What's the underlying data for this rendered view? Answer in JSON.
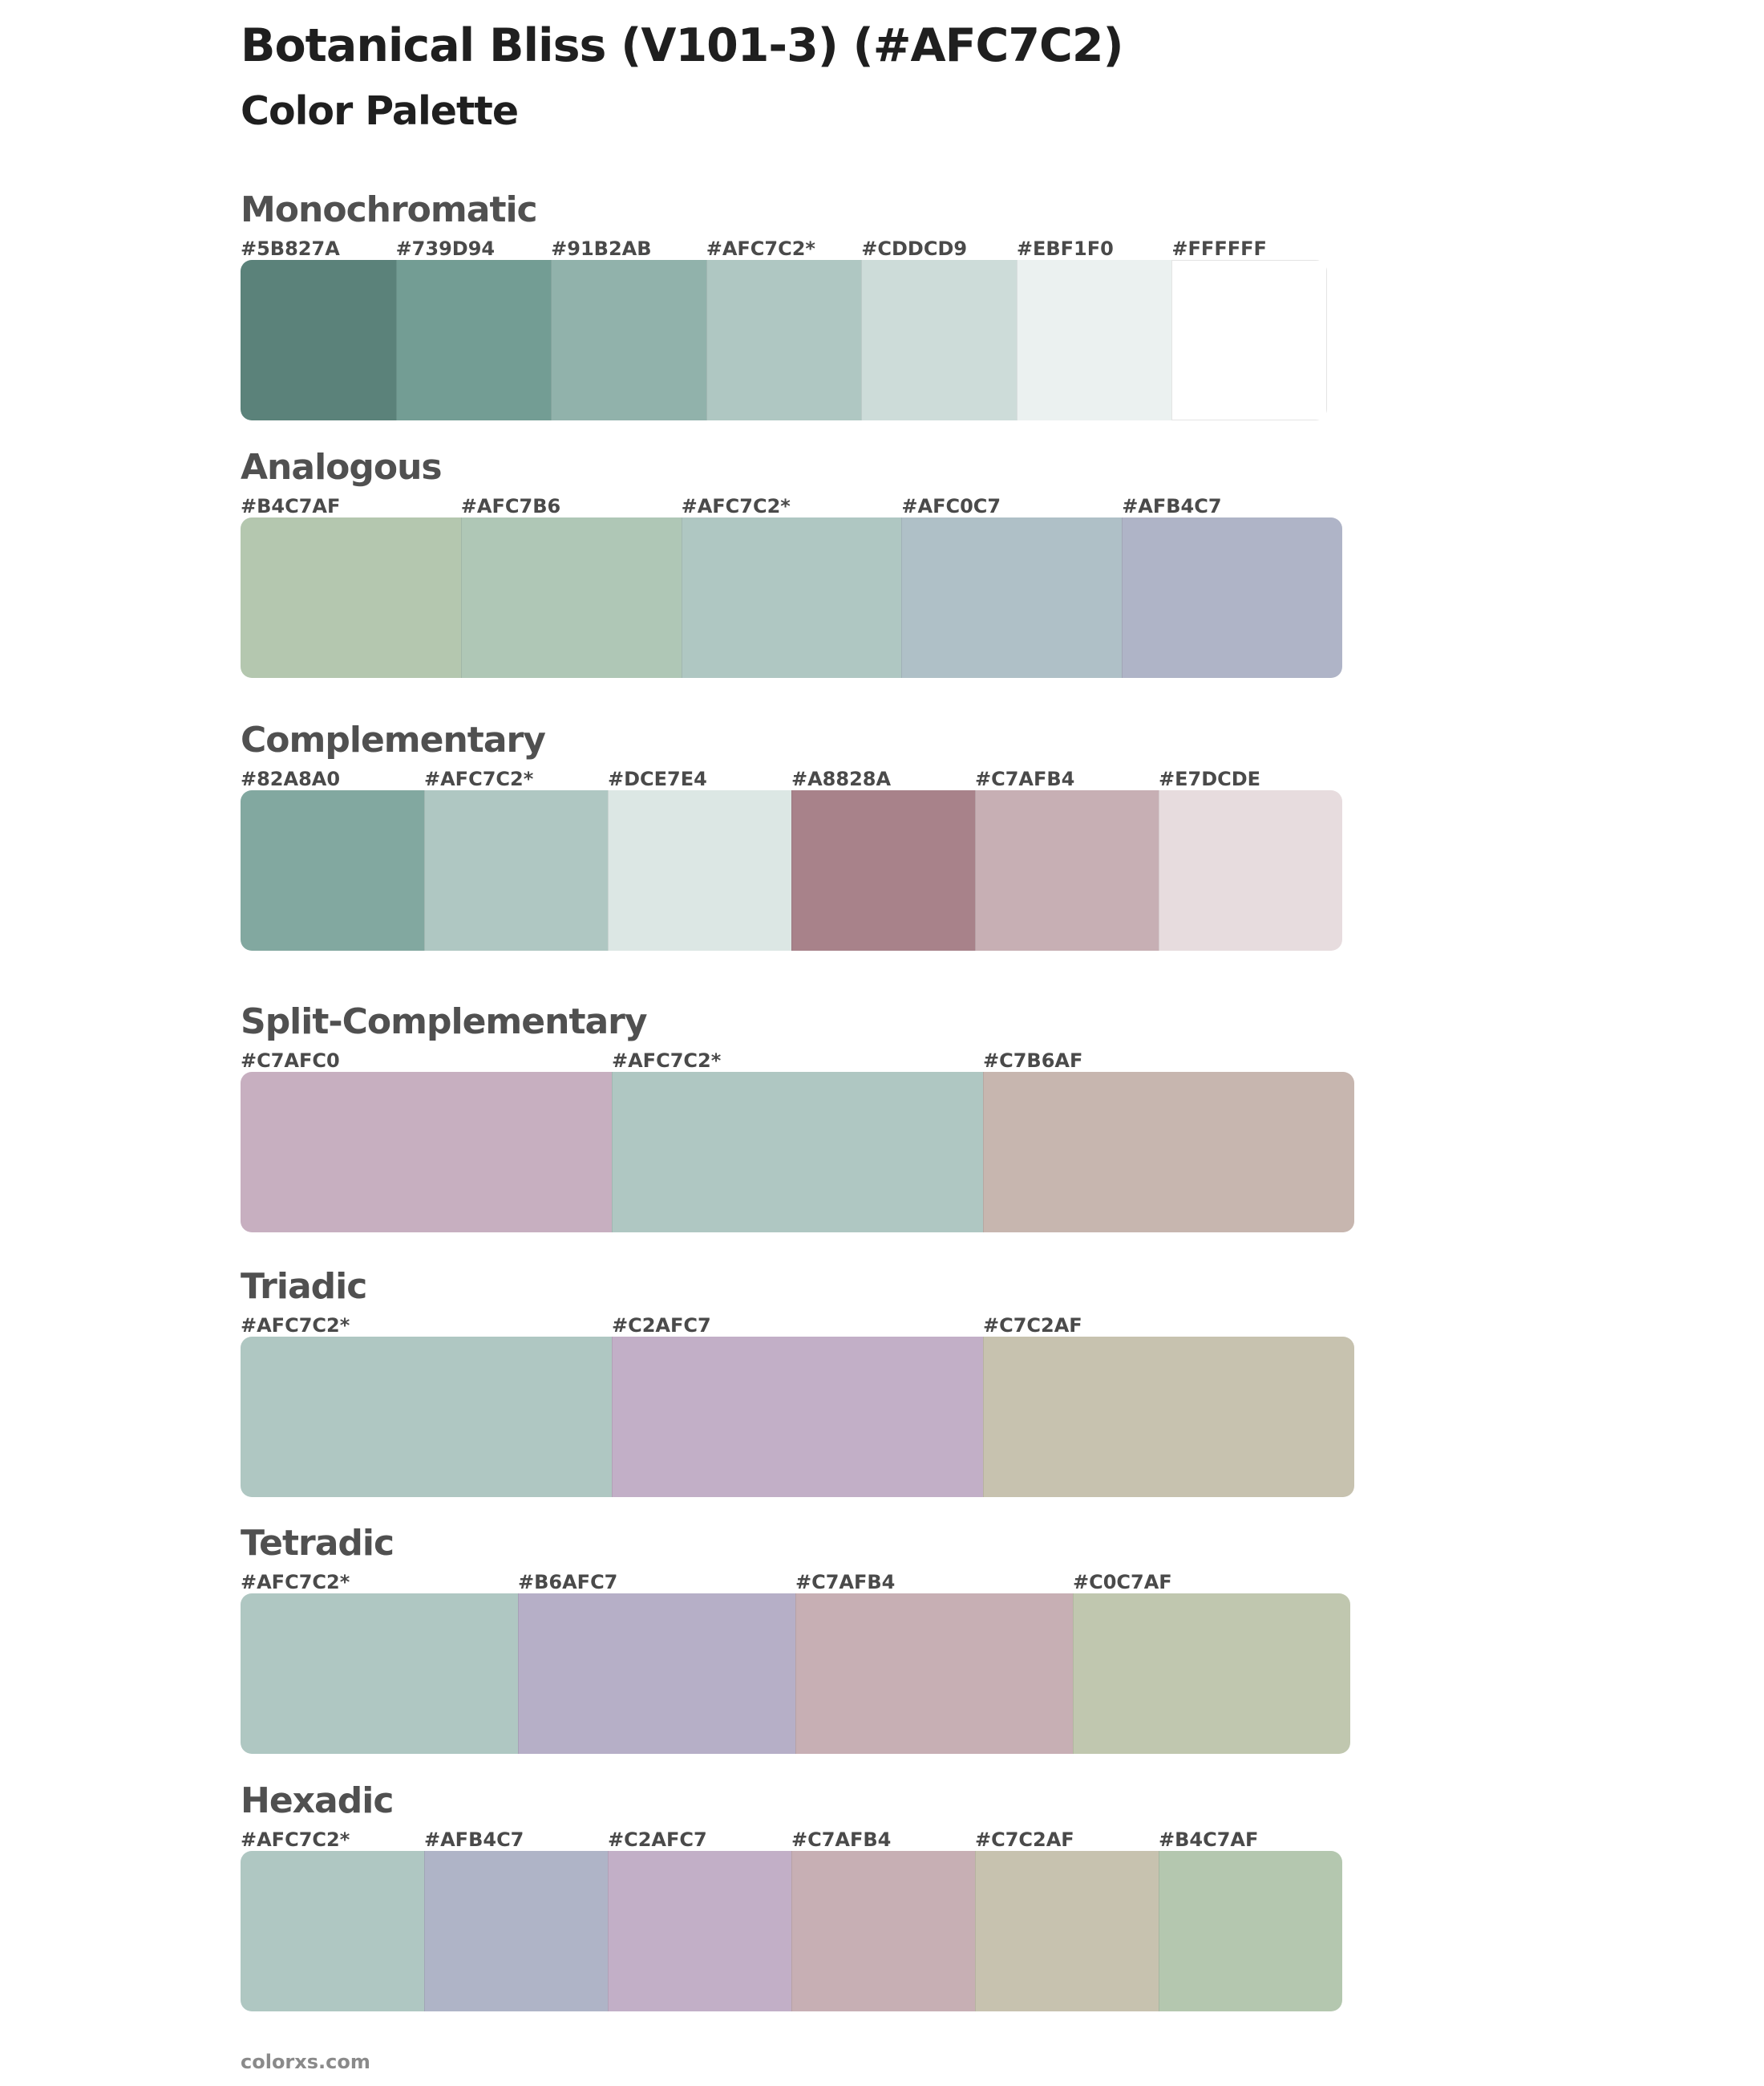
{
  "page": {
    "title": "Botanical Bliss (V101-3) (#AFC7C2)",
    "subtitle": "Color Palette",
    "footer": "colorxs.com"
  },
  "sections": [
    {
      "name": "Monochromatic",
      "swatches": [
        {
          "label": "#5B827A",
          "color": "#5B827A"
        },
        {
          "label": "#739D94",
          "color": "#739D94"
        },
        {
          "label": "#91B2AB",
          "color": "#91B2AB"
        },
        {
          "label": "#AFC7C2*",
          "color": "#AFC7C2"
        },
        {
          "label": "#CDDCD9",
          "color": "#CDDCD9"
        },
        {
          "label": "#EBF1F0",
          "color": "#EBF1F0"
        },
        {
          "label": "#FFFFFF",
          "color": "#FFFFFF"
        }
      ]
    },
    {
      "name": "Analogous",
      "swatches": [
        {
          "label": "#B4C7AF",
          "color": "#B4C7AF"
        },
        {
          "label": "#AFC7B6",
          "color": "#AFC7B6"
        },
        {
          "label": "#AFC7C2*",
          "color": "#AFC7C2"
        },
        {
          "label": "#AFC0C7",
          "color": "#AFC0C7"
        },
        {
          "label": "#AFB4C7",
          "color": "#AFB4C7"
        }
      ]
    },
    {
      "name": "Complementary",
      "swatches": [
        {
          "label": "#82A8A0",
          "color": "#82A8A0"
        },
        {
          "label": "#AFC7C2*",
          "color": "#AFC7C2"
        },
        {
          "label": "#DCE7E4",
          "color": "#DCE7E4"
        },
        {
          "label": "#A8828A",
          "color": "#A8828A"
        },
        {
          "label": "#C7AFB4",
          "color": "#C7AFB4"
        },
        {
          "label": "#E7DCDE",
          "color": "#E7DCDE"
        }
      ]
    },
    {
      "name": "Split-Complementary",
      "swatches": [
        {
          "label": "#C7AFC0",
          "color": "#C7AFC0"
        },
        {
          "label": "#AFC7C2*",
          "color": "#AFC7C2"
        },
        {
          "label": "#C7B6AF",
          "color": "#C7B6AF"
        }
      ]
    },
    {
      "name": "Triadic",
      "swatches": [
        {
          "label": "#AFC7C2*",
          "color": "#AFC7C2"
        },
        {
          "label": "#C2AFC7",
          "color": "#C2AFC7"
        },
        {
          "label": "#C7C2AF",
          "color": "#C7C2AF"
        }
      ]
    },
    {
      "name": "Tetradic",
      "swatches": [
        {
          "label": "#AFC7C2*",
          "color": "#AFC7C2"
        },
        {
          "label": "#B6AFC7",
          "color": "#B6AFC7"
        },
        {
          "label": "#C7AFB4",
          "color": "#C7AFB4"
        },
        {
          "label": "#C0C7AF",
          "color": "#C0C7AF"
        }
      ]
    },
    {
      "name": "Hexadic",
      "swatches": [
        {
          "label": "#AFC7C2*",
          "color": "#AFC7C2"
        },
        {
          "label": "#AFB4C7",
          "color": "#AFB4C7"
        },
        {
          "label": "#C2AFC7",
          "color": "#C2AFC7"
        },
        {
          "label": "#C7AFB4",
          "color": "#C7AFB4"
        },
        {
          "label": "#C7C2AF",
          "color": "#C7C2AF"
        },
        {
          "label": "#B4C7AF",
          "color": "#B4C7AF"
        }
      ]
    }
  ]
}
